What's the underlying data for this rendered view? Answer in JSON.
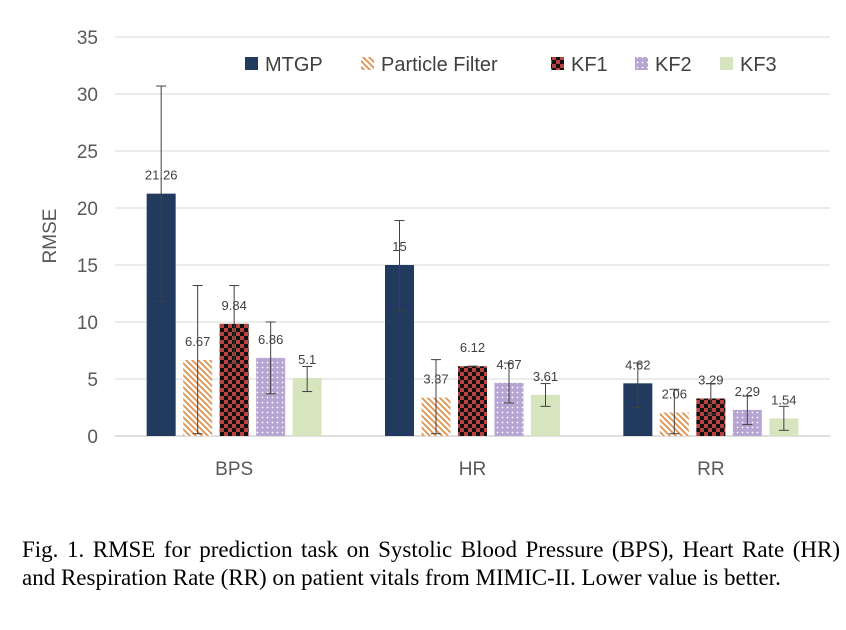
{
  "chart_data": {
    "type": "bar",
    "title": "",
    "xlabel": "",
    "ylabel": "RMSE",
    "ylim": [
      0,
      35
    ],
    "yticks": [
      0,
      5,
      10,
      15,
      20,
      25,
      30,
      35
    ],
    "grid": "horizontal",
    "legend_position": "top",
    "categories": [
      "BPS",
      "HR",
      "RR"
    ],
    "series": [
      {
        "name": "MTGP",
        "values": [
          21.26,
          15,
          4.62
        ],
        "err_low": [
          11.8,
          11.0,
          2.5
        ],
        "err_high": [
          30.7,
          18.9,
          6.4
        ],
        "labels": [
          "21.26",
          "15",
          "4.62"
        ],
        "color": "#223a5e",
        "pattern": "solid"
      },
      {
        "name": "Particle Filter",
        "values": [
          6.67,
          3.37,
          2.06
        ],
        "err_low": [
          0.2,
          0.2,
          0.2
        ],
        "err_high": [
          13.2,
          6.7,
          4.1
        ],
        "labels": [
          "6.67",
          "3.37",
          "2.06"
        ],
        "color": "#e8a267",
        "pattern": "diagonal"
      },
      {
        "name": "KF1",
        "values": [
          9.84,
          6.12,
          3.29
        ],
        "err_low": [
          6.4,
          6.12,
          1.9
        ],
        "err_high": [
          13.2,
          6.12,
          4.6
        ],
        "labels": [
          "9.84",
          "6.12",
          "3.29"
        ],
        "color": "#c0504d",
        "pattern": "checker"
      },
      {
        "name": "KF2",
        "values": [
          6.86,
          4.67,
          2.29
        ],
        "err_low": [
          3.7,
          2.9,
          1.0
        ],
        "err_high": [
          10.0,
          6.4,
          3.5
        ],
        "labels": [
          "6.86",
          "4.67",
          "2.29"
        ],
        "color": "#9b82c0",
        "pattern": "dots"
      },
      {
        "name": "KF3",
        "values": [
          5.1,
          3.61,
          1.54
        ],
        "err_low": [
          3.9,
          2.6,
          0.5
        ],
        "err_high": [
          6.1,
          4.6,
          2.6
        ],
        "labels": [
          "5.1",
          "3.61",
          "1.54"
        ],
        "color": "#d6e5bd",
        "pattern": "solid"
      }
    ]
  },
  "caption": "Fig. 1.   RMSE for prediction task on Systolic Blood Pressure (BPS), Heart Rate (HR) and Respiration Rate (RR) on patient vitals from MIMIC-II. Lower value is better."
}
